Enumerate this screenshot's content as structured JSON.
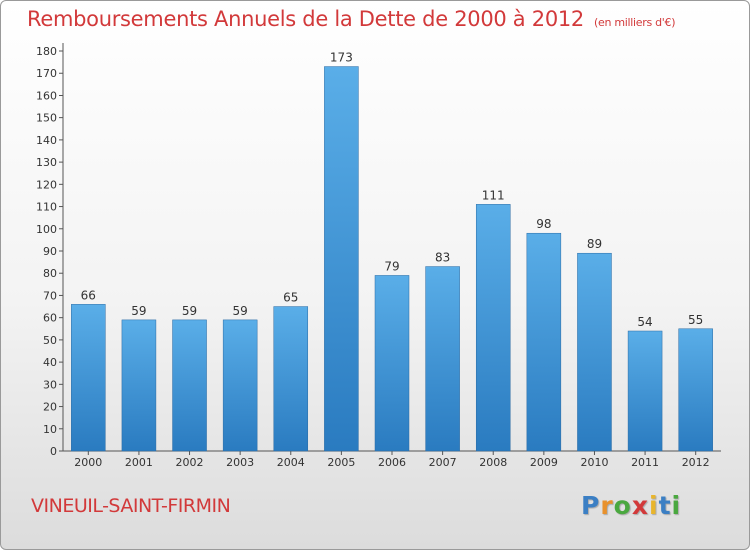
{
  "title": "Remboursements Annuels de la Dette de 2000 à 2012",
  "subtitle": "(en milliers d'€)",
  "commune": "VINEUIL-SAINT-FIRMIN",
  "logo": {
    "text": "Proxiti",
    "letter_colors": [
      "#3b7fc4",
      "#e8912c",
      "#4aa83f",
      "#d2393a",
      "#e8b52c",
      "#3b7fc4",
      "#4aa83f"
    ]
  },
  "colors": {
    "title": "#d2393a",
    "bar_light": "#5aaee8",
    "bar_dark": "#2a7bc0"
  },
  "chart_data": {
    "type": "bar",
    "title": "Remboursements Annuels de la Dette de 2000 à 2012",
    "categories": [
      "2000",
      "2001",
      "2002",
      "2003",
      "2004",
      "2005",
      "2006",
      "2007",
      "2008",
      "2009",
      "2010",
      "2011",
      "2012"
    ],
    "values": [
      66,
      59,
      59,
      59,
      65,
      173,
      79,
      83,
      111,
      98,
      89,
      54,
      55
    ],
    "ylim": [
      0,
      180
    ],
    "yticks": [
      0,
      10,
      20,
      30,
      40,
      50,
      60,
      70,
      80,
      90,
      100,
      110,
      120,
      130,
      140,
      150,
      160,
      170,
      180
    ],
    "grid": false,
    "data_labels": true
  }
}
